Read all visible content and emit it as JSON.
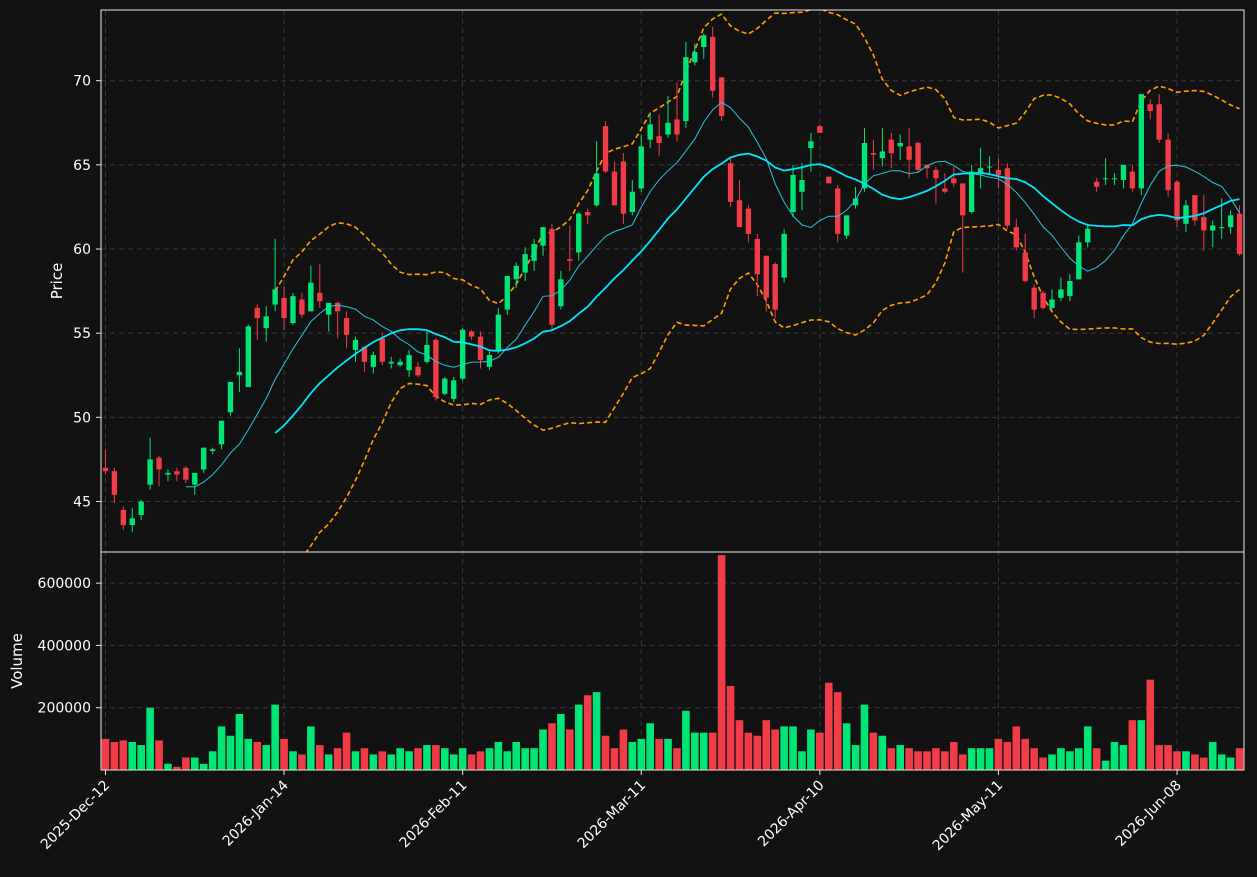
{
  "chart_data": {
    "type": "candlestick",
    "x_tick_labels": [
      "2025-Dec-12",
      "2026-Jan-14",
      "2026-Feb-11",
      "2026-Mar-11",
      "2026-Apr-10",
      "2026-May-11",
      "2026-Jun-08"
    ],
    "price_panel": {
      "ylabel": "Price",
      "ylim": [
        42.0,
        74.2
      ],
      "y_ticks": [
        45,
        50,
        55,
        60,
        65,
        70
      ],
      "grid": true
    },
    "volume_panel": {
      "ylabel": "Volume",
      "ylim": [
        0,
        700000
      ],
      "y_ticks": [
        200000,
        400000,
        600000
      ],
      "grid": true
    },
    "colors": {
      "background": "#121212",
      "up": "#00e676",
      "down": "#f03c46",
      "ma_fast": "#26c6da",
      "ma_slow": "#00e5ff",
      "bollinger": "#ffa000",
      "grid": "#3a3a3a",
      "axis_text": "#ffffff"
    },
    "candles": [
      [
        47.0,
        48.1,
        46.6,
        46.8,
        100000
      ],
      [
        46.8,
        47.0,
        44.9,
        45.4,
        90000
      ],
      [
        44.5,
        44.7,
        43.3,
        43.6,
        95000
      ],
      [
        43.6,
        44.6,
        43.2,
        44.0,
        90000
      ],
      [
        44.2,
        45.1,
        43.9,
        45.0,
        80000
      ],
      [
        46.0,
        48.8,
        45.7,
        47.5,
        200000
      ],
      [
        47.6,
        47.7,
        45.9,
        46.9,
        95000
      ],
      [
        46.6,
        46.9,
        46.2,
        46.7,
        20000
      ],
      [
        46.8,
        47.0,
        46.2,
        46.6,
        10000
      ],
      [
        47.0,
        47.1,
        46.1,
        46.3,
        40000
      ],
      [
        46.0,
        46.7,
        45.4,
        46.7,
        40000
      ],
      [
        46.9,
        48.2,
        46.7,
        48.2,
        20000
      ],
      [
        48.0,
        48.2,
        47.8,
        48.1,
        60000
      ],
      [
        48.4,
        49.5,
        48.1,
        49.8,
        140000
      ],
      [
        50.3,
        52.1,
        50.1,
        52.1,
        110000
      ],
      [
        52.5,
        54.1,
        51.5,
        52.7,
        180000
      ],
      [
        51.8,
        55.5,
        51.8,
        55.4,
        100000
      ],
      [
        56.5,
        56.7,
        54.6,
        55.9,
        90000
      ],
      [
        55.3,
        56.6,
        54.5,
        56.0,
        80000
      ],
      [
        56.7,
        60.6,
        56.3,
        57.6,
        210000
      ],
      [
        57.1,
        57.8,
        55.2,
        55.9,
        100000
      ],
      [
        55.6,
        57.4,
        55.5,
        57.2,
        60000
      ],
      [
        57.0,
        57.4,
        55.9,
        56.1,
        50000
      ],
      [
        56.3,
        59.0,
        56.3,
        58.0,
        140000
      ],
      [
        57.4,
        59.1,
        56.5,
        56.9,
        80000
      ],
      [
        56.1,
        56.6,
        55.1,
        56.8,
        50000
      ],
      [
        56.8,
        56.9,
        54.7,
        56.3,
        70000
      ],
      [
        55.9,
        56.3,
        54.1,
        54.9,
        120000
      ],
      [
        54.0,
        54.8,
        53.3,
        54.6,
        60000
      ],
      [
        54.2,
        54.2,
        52.7,
        53.3,
        70000
      ],
      [
        53.0,
        53.9,
        52.6,
        53.7,
        50000
      ],
      [
        54.7,
        55.0,
        53.1,
        53.3,
        60000
      ],
      [
        53.2,
        53.6,
        52.9,
        53.3,
        50000
      ],
      [
        53.1,
        53.5,
        53.0,
        53.3,
        70000
      ],
      [
        52.8,
        54.0,
        52.4,
        53.7,
        60000
      ],
      [
        53.0,
        53.3,
        52.4,
        52.5,
        70000
      ],
      [
        53.3,
        55.2,
        53.2,
        54.3,
        80000
      ],
      [
        54.6,
        54.7,
        51.0,
        51.2,
        80000
      ],
      [
        51.4,
        52.4,
        51.3,
        52.3,
        70000
      ],
      [
        51.1,
        52.4,
        50.9,
        52.2,
        50000
      ],
      [
        52.3,
        55.3,
        52.2,
        55.2,
        70000
      ],
      [
        55.1,
        55.2,
        54.6,
        54.8,
        50000
      ],
      [
        54.8,
        55.1,
        52.9,
        53.4,
        60000
      ],
      [
        53.0,
        53.9,
        52.8,
        53.7,
        70000
      ],
      [
        54.0,
        56.5,
        53.8,
        56.1,
        90000
      ],
      [
        56.4,
        58.4,
        56.1,
        58.4,
        60000
      ],
      [
        58.2,
        59.2,
        57.7,
        59.0,
        90000
      ],
      [
        58.6,
        60.1,
        58.1,
        59.7,
        70000
      ],
      [
        59.3,
        60.6,
        58.7,
        60.3,
        70000
      ],
      [
        60.2,
        61.3,
        59.6,
        61.3,
        130000
      ],
      [
        61.2,
        61.5,
        55.1,
        55.5,
        150000
      ],
      [
        56.6,
        58.7,
        56.4,
        58.2,
        180000
      ],
      [
        59.4,
        61.4,
        58.7,
        59.3,
        130000
      ],
      [
        59.8,
        62.2,
        59.3,
        62.1,
        210000
      ],
      [
        62.2,
        62.4,
        61.5,
        62.0,
        240000
      ],
      [
        62.6,
        66.4,
        62.5,
        64.5,
        250000
      ],
      [
        67.3,
        67.6,
        64.5,
        64.6,
        110000
      ],
      [
        64.6,
        65.2,
        62.6,
        62.6,
        70000
      ],
      [
        65.2,
        65.7,
        61.5,
        62.1,
        130000
      ],
      [
        62.2,
        64.1,
        62.0,
        63.4,
        90000
      ],
      [
        63.6,
        66.8,
        63.4,
        66.1,
        100000
      ],
      [
        66.5,
        68.1,
        66.0,
        67.4,
        150000
      ],
      [
        66.7,
        68.0,
        65.5,
        66.3,
        100000
      ],
      [
        66.8,
        69.1,
        66.6,
        67.5,
        100000
      ],
      [
        67.7,
        69.9,
        66.4,
        66.8,
        70000
      ],
      [
        67.6,
        72.3,
        67.2,
        71.4,
        190000
      ],
      [
        71.1,
        72.2,
        70.9,
        71.7,
        120000
      ],
      [
        72.0,
        72.8,
        71.3,
        72.7,
        120000
      ],
      [
        72.6,
        73.2,
        69.0,
        69.4,
        120000
      ],
      [
        70.2,
        70.2,
        67.6,
        67.9,
        690000
      ],
      [
        65.1,
        65.5,
        62.5,
        62.8,
        270000
      ],
      [
        62.9,
        64.1,
        61.3,
        61.3,
        160000
      ],
      [
        62.4,
        62.6,
        60.4,
        60.9,
        120000
      ],
      [
        60.6,
        60.9,
        57.2,
        58.5,
        110000
      ],
      [
        59.6,
        59.6,
        56.3,
        57.1,
        160000
      ],
      [
        59.1,
        59.2,
        55.9,
        56.4,
        130000
      ],
      [
        58.3,
        61.2,
        58.0,
        60.9,
        140000
      ],
      [
        62.2,
        65.0,
        61.9,
        64.4,
        140000
      ],
      [
        63.4,
        65.1,
        62.3,
        64.1,
        60000
      ],
      [
        66.0,
        66.9,
        64.6,
        66.4,
        130000
      ],
      [
        67.3,
        67.4,
        66.9,
        66.9,
        120000
      ],
      [
        64.3,
        64.3,
        63.9,
        63.9,
        280000
      ],
      [
        63.6,
        63.8,
        60.4,
        60.9,
        250000
      ],
      [
        60.8,
        62.0,
        60.6,
        62.0,
        150000
      ],
      [
        62.6,
        63.7,
        62.4,
        63.0,
        80000
      ],
      [
        63.6,
        67.2,
        63.4,
        66.3,
        210000
      ],
      [
        65.7,
        66.5,
        64.7,
        65.6,
        120000
      ],
      [
        65.4,
        67.2,
        64.9,
        65.8,
        110000
      ],
      [
        66.5,
        66.9,
        64.8,
        65.7,
        70000
      ],
      [
        66.1,
        66.8,
        65.3,
        66.3,
        80000
      ],
      [
        66.1,
        67.2,
        64.2,
        65.3,
        70000
      ],
      [
        66.3,
        66.4,
        64.6,
        64.7,
        60000
      ],
      [
        65.0,
        65.0,
        64.2,
        64.8,
        60000
      ],
      [
        64.7,
        64.9,
        62.7,
        64.2,
        70000
      ],
      [
        63.6,
        64.5,
        63.3,
        63.4,
        60000
      ],
      [
        64.2,
        64.9,
        63.7,
        63.9,
        90000
      ],
      [
        63.9,
        63.9,
        58.6,
        62.0,
        50000
      ],
      [
        62.2,
        65.0,
        62.1,
        64.6,
        70000
      ],
      [
        64.5,
        66.0,
        63.6,
        64.8,
        70000
      ],
      [
        64.9,
        65.5,
        64.5,
        64.9,
        70000
      ],
      [
        64.7,
        65.4,
        63.6,
        64.4,
        100000
      ],
      [
        64.8,
        65.1,
        61.2,
        61.4,
        90000
      ],
      [
        61.3,
        61.8,
        59.9,
        60.1,
        140000
      ],
      [
        59.8,
        60.9,
        58.0,
        58.1,
        100000
      ],
      [
        57.7,
        57.9,
        55.9,
        56.4,
        70000
      ],
      [
        57.4,
        57.5,
        56.4,
        56.5,
        40000
      ],
      [
        56.5,
        57.6,
        56.4,
        57.0,
        50000
      ],
      [
        57.1,
        58.3,
        56.9,
        57.6,
        70000
      ],
      [
        57.2,
        58.5,
        56.9,
        58.1,
        60000
      ],
      [
        58.2,
        60.8,
        58.2,
        60.4,
        70000
      ],
      [
        60.4,
        61.5,
        60.1,
        61.2,
        140000
      ],
      [
        64.0,
        64.2,
        63.4,
        63.7,
        70000
      ],
      [
        64.2,
        65.4,
        63.8,
        64.2,
        30000
      ],
      [
        64.2,
        64.5,
        63.8,
        64.2,
        90000
      ],
      [
        64.1,
        65.0,
        63.6,
        65.0,
        80000
      ],
      [
        64.6,
        65.0,
        63.4,
        63.6,
        160000
      ],
      [
        63.6,
        69.2,
        63.2,
        69.2,
        160000
      ],
      [
        68.6,
        68.9,
        67.7,
        68.2,
        290000
      ],
      [
        68.6,
        69.2,
        66.3,
        66.5,
        80000
      ],
      [
        66.5,
        66.9,
        63.1,
        63.5,
        80000
      ],
      [
        64.0,
        64.1,
        61.3,
        61.7,
        60000
      ],
      [
        61.5,
        62.9,
        61.0,
        62.6,
        60000
      ],
      [
        63.2,
        63.2,
        61.4,
        61.7,
        50000
      ],
      [
        61.9,
        63.2,
        59.9,
        61.1,
        40000
      ],
      [
        61.1,
        61.7,
        60.1,
        61.4,
        90000
      ],
      [
        61.3,
        63.0,
        60.6,
        61.3,
        50000
      ],
      [
        61.3,
        62.3,
        60.9,
        62.0,
        40000
      ],
      [
        62.1,
        62.6,
        59.6,
        59.7,
        70000
      ]
    ]
  }
}
